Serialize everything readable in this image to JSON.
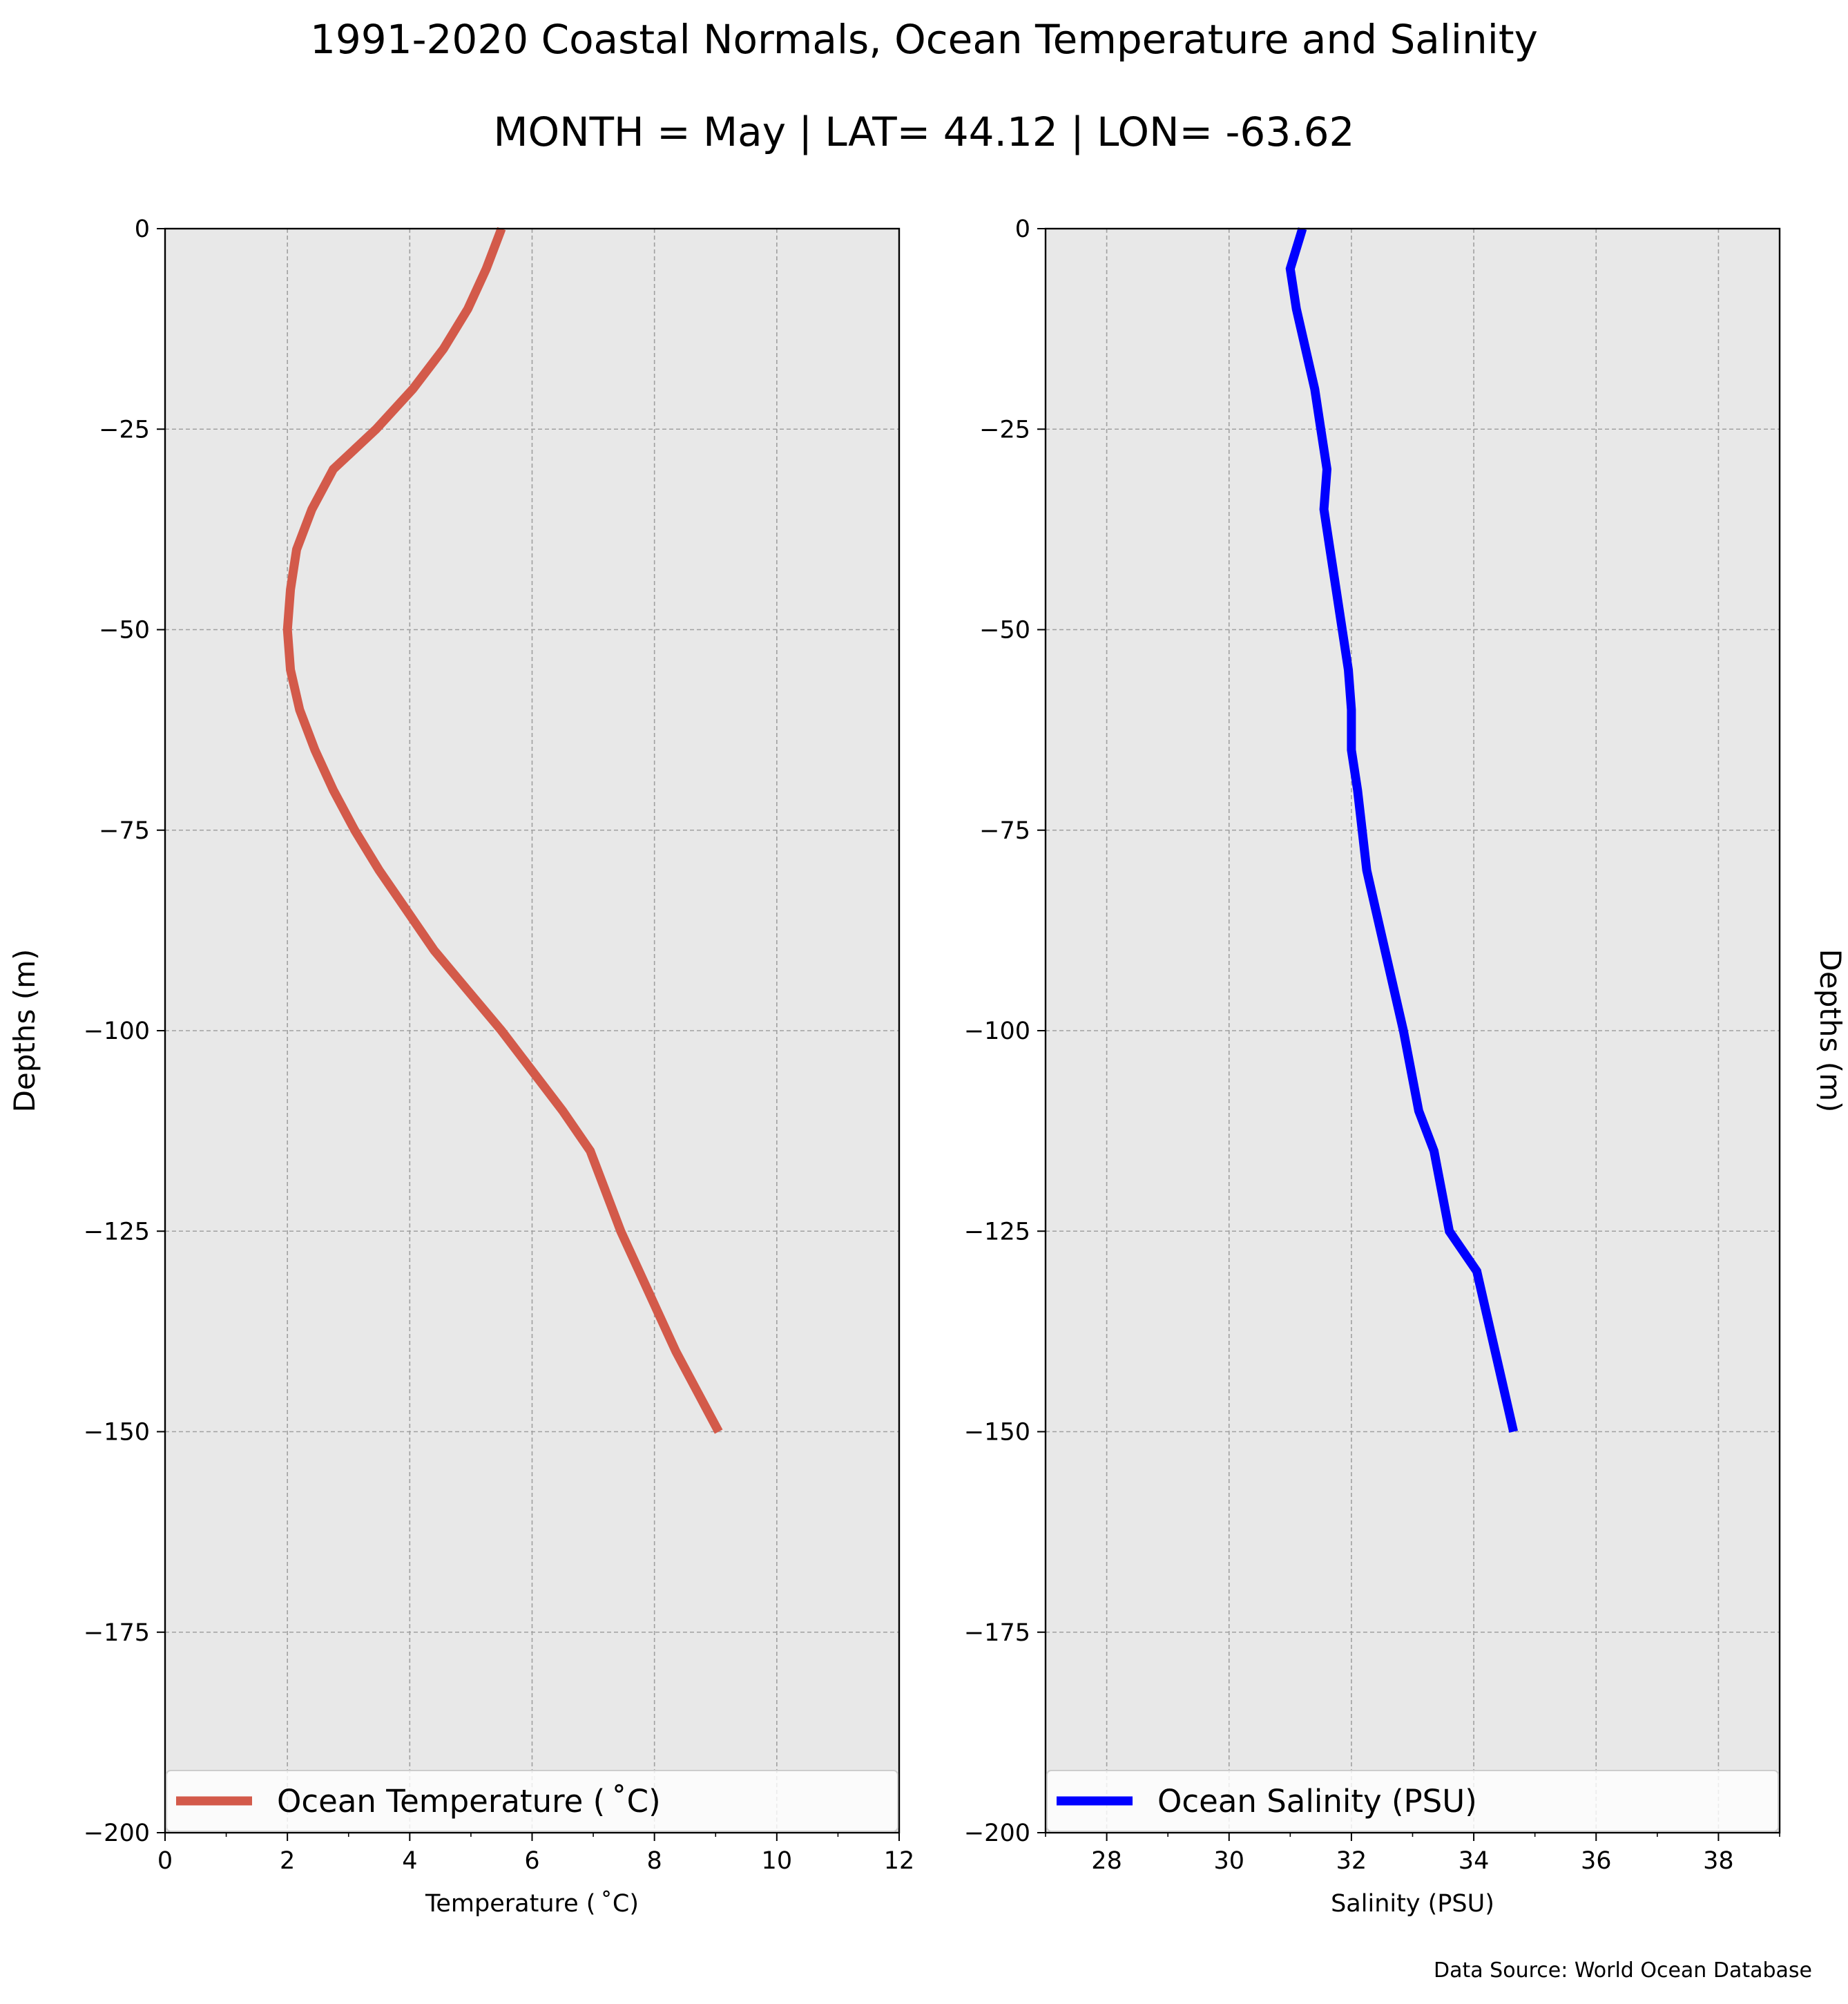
{
  "title": "1991-2020 Coastal Normals, Ocean Temperature and Salinity",
  "subtitle": "MONTH = May | LAT= 44.12 | LON= -63.62",
  "source_note": "Data Source: World Ocean Database",
  "colors": {
    "panel_background": "#e8e8e8",
    "grid": "#a0a0a0",
    "temperature_line": "#d35a4a",
    "salinity_line": "#0000ff"
  },
  "chart_data": [
    {
      "type": "line",
      "xlabel": "Temperature ($^\\circ$C)",
      "xlabel_display": "Temperature ( ˚C)",
      "ylabel": "Depths (m)",
      "xlim": [
        0,
        12
      ],
      "ylim": [
        -200,
        0
      ],
      "xticks": [
        0,
        2,
        4,
        6,
        8,
        10,
        12
      ],
      "xtick_labels": [
        "0",
        "2",
        "4",
        "6",
        "8",
        "10",
        "12"
      ],
      "yticks": [
        0,
        -25,
        -50,
        -75,
        -100,
        -125,
        -150,
        -175,
        -200
      ],
      "ytick_labels": [
        "0",
        "−25",
        "−50",
        "−75",
        "−100",
        "−125",
        "−150",
        "−175",
        "−200"
      ],
      "grid": true,
      "legend_position": "bottom",
      "series": [
        {
          "name": "Ocean Temperature ( ˚C)",
          "color": "#d35a4a",
          "x": [
            5.5,
            5.25,
            4.95,
            4.55,
            4.05,
            3.45,
            2.75,
            2.4,
            2.15,
            2.05,
            2.0,
            2.05,
            2.2,
            2.45,
            2.75,
            3.1,
            3.5,
            3.95,
            4.4,
            4.95,
            5.5,
            6.0,
            6.5,
            6.95,
            7.45,
            7.75,
            8.05,
            8.35,
            8.7,
            9.05
          ],
          "y": [
            0,
            -5,
            -10,
            -15,
            -20,
            -25,
            -30,
            -35,
            -40,
            -45,
            -50,
            -55,
            -60,
            -65,
            -70,
            -75,
            -80,
            -85,
            -90,
            -95,
            -100,
            -105,
            -110,
            -115,
            -125,
            -130,
            -135,
            -140,
            -145,
            -150
          ]
        }
      ]
    },
    {
      "type": "line",
      "xlabel": "Salinity (PSU)",
      "ylabel": "Depths (m)",
      "xlim": [
        27,
        39
      ],
      "ylim": [
        -200,
        0
      ],
      "xticks": [
        28,
        30,
        32,
        34,
        36,
        38
      ],
      "xtick_labels": [
        "28",
        "30",
        "32",
        "34",
        "36",
        "38"
      ],
      "yticks": [
        0,
        -25,
        -50,
        -75,
        -100,
        -125,
        -150,
        -175,
        -200
      ],
      "ytick_labels": [
        "0",
        "−25",
        "−50",
        "−75",
        "−100",
        "−125",
        "−150",
        "−175",
        "−200"
      ],
      "grid": true,
      "legend_position": "bottom",
      "series": [
        {
          "name": "Ocean Salinity (PSU)",
          "color": "#0000ff",
          "x": [
            31.2,
            31.0,
            31.1,
            31.25,
            31.4,
            31.5,
            31.6,
            31.55,
            31.65,
            31.75,
            31.85,
            31.95,
            32.0,
            32.0,
            32.1,
            32.25,
            32.4,
            32.55,
            32.7,
            32.85,
            33.1,
            33.35,
            33.6,
            34.05,
            34.2,
            34.35,
            34.5,
            34.65
          ],
          "y": [
            0,
            -5,
            -10,
            -15,
            -20,
            -25,
            -30,
            -35,
            -40,
            -45,
            -50,
            -55,
            -60,
            -65,
            -70,
            -80,
            -85,
            -90,
            -95,
            -100,
            -110,
            -115,
            -125,
            -130,
            -135,
            -140,
            -145,
            -150
          ]
        }
      ]
    }
  ]
}
